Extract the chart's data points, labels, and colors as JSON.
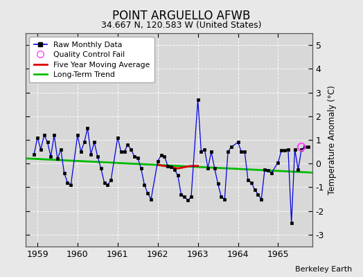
{
  "title": "POINT ARGUELLO AFWB",
  "subtitle": "34.667 N, 120.583 W (United States)",
  "ylabel": "Temperature Anomaly (°C)",
  "credit": "Berkeley Earth",
  "ylim": [
    -3.5,
    5.5
  ],
  "xlim": [
    1958.7,
    1965.85
  ],
  "yticks": [
    -3,
    -2,
    -1,
    0,
    1,
    2,
    3,
    4,
    5
  ],
  "xticks": [
    1959,
    1960,
    1961,
    1962,
    1963,
    1964,
    1965
  ],
  "plot_bg_color": "#d8d8d8",
  "fig_bg_color": "#e8e8e8",
  "raw_x": [
    1958.917,
    1959.0,
    1959.083,
    1959.167,
    1959.25,
    1959.333,
    1959.417,
    1959.5,
    1959.583,
    1959.667,
    1959.75,
    1959.833,
    1960.0,
    1960.083,
    1960.167,
    1960.25,
    1960.333,
    1960.417,
    1960.5,
    1960.583,
    1960.667,
    1960.75,
    1960.833,
    1961.0,
    1961.083,
    1961.167,
    1961.25,
    1961.333,
    1961.417,
    1961.5,
    1961.583,
    1961.667,
    1961.75,
    1961.833,
    1962.0,
    1962.083,
    1962.167,
    1962.25,
    1962.333,
    1962.417,
    1962.5,
    1962.583,
    1962.667,
    1962.75,
    1962.833,
    1963.0,
    1963.083,
    1963.167,
    1963.25,
    1963.333,
    1963.417,
    1963.5,
    1963.583,
    1963.667,
    1963.75,
    1963.833,
    1964.0,
    1964.083,
    1964.167,
    1964.25,
    1964.333,
    1964.417,
    1964.5,
    1964.583,
    1964.667,
    1964.75,
    1964.833,
    1965.0,
    1965.083,
    1965.167,
    1965.25,
    1965.333,
    1965.417,
    1965.5,
    1965.583,
    1965.667,
    1965.75
  ],
  "raw_y": [
    0.4,
    1.1,
    0.6,
    1.2,
    0.9,
    0.3,
    1.2,
    0.2,
    0.6,
    -0.4,
    -0.8,
    -0.9,
    1.2,
    0.5,
    0.9,
    1.5,
    0.4,
    0.9,
    0.3,
    -0.2,
    -0.8,
    -0.9,
    -0.7,
    1.1,
    0.5,
    0.5,
    0.8,
    0.6,
    0.3,
    0.25,
    -0.2,
    -0.9,
    -1.25,
    -1.5,
    0.1,
    0.35,
    0.3,
    -0.1,
    -0.15,
    -0.25,
    -0.5,
    -1.3,
    -1.4,
    -1.55,
    -1.4,
    2.7,
    0.5,
    0.6,
    -0.2,
    0.5,
    -0.2,
    -0.85,
    -1.4,
    -1.5,
    0.5,
    0.7,
    0.9,
    0.5,
    0.5,
    -0.7,
    -0.8,
    -1.1,
    -1.3,
    -1.5,
    -0.25,
    -0.3,
    -0.4,
    0.05,
    0.55,
    0.55,
    0.6,
    -2.5,
    0.6,
    -0.25,
    0.6,
    0.7,
    0.7
  ],
  "qc_fail_x": [
    1965.583
  ],
  "qc_fail_y": [
    0.7
  ],
  "moving_avg_x": [
    1962.0,
    1962.083,
    1962.167,
    1962.25,
    1962.333,
    1962.417,
    1962.5,
    1962.583,
    1962.667,
    1962.75,
    1962.833,
    1963.0
  ],
  "moving_avg_y": [
    -0.05,
    -0.08,
    -0.1,
    -0.12,
    -0.15,
    -0.18,
    -0.2,
    -0.18,
    -0.15,
    -0.12,
    -0.1,
    -0.1
  ],
  "trend_x": [
    1958.7,
    1965.85
  ],
  "trend_y": [
    0.22,
    -0.38
  ],
  "raw_color": "#0000dd",
  "moving_avg_color": "#dd0000",
  "trend_color": "#00bb00",
  "qc_color": "#ff44ff"
}
